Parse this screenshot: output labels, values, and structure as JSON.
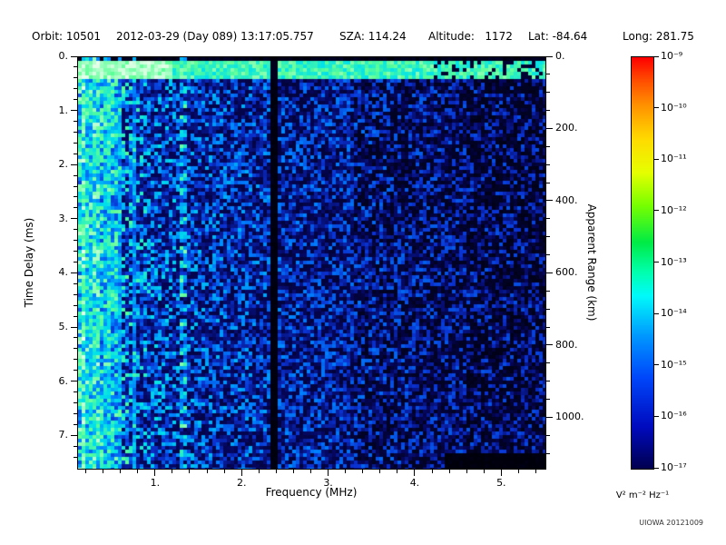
{
  "header": {
    "items": [
      "Orbit: 10501",
      "2012-03-29 (Day 089) 13:17:05.757",
      "SZA: 114.24",
      "Altitude:   1172",
      "Lat: -84.64",
      "Long: 281.75"
    ]
  },
  "chart_data": {
    "type": "heatmap",
    "title": "",
    "xlabel": "Frequency (MHz)",
    "ylabel_left": "Time Delay (ms)",
    "ylabel_right": "Apparent Range (km)",
    "x_range": [
      0.1,
      5.5
    ],
    "y_range": [
      0,
      7.6
    ],
    "range_km_per_ms": 150,
    "x_ticks": [
      1,
      2,
      3,
      4,
      5
    ],
    "x_tick_labels": [
      "1.",
      "2.",
      "3.",
      "4.",
      "5."
    ],
    "y_ticks": [
      0,
      1,
      2,
      3,
      4,
      5,
      6,
      7
    ],
    "y_tick_labels": [
      "0.",
      "1.",
      "2.",
      "3.",
      "4.",
      "5.",
      "6.",
      "7."
    ],
    "y2_ticks": [
      0,
      200,
      400,
      600,
      800,
      1000
    ],
    "y2_tick_labels": [
      "0.",
      "200.",
      "400.",
      "600.",
      "800.",
      "1000."
    ],
    "background_color": "#ffffff",
    "plot_background_color": "#000000",
    "colorbar": {
      "scale": "log",
      "max_label": "10⁻⁹",
      "min_label": "10⁻¹⁷",
      "tick_labels": [
        "10⁻⁹",
        "10⁻¹⁰",
        "10⁻¹¹",
        "10⁻¹²",
        "10⁻¹³",
        "10⁻¹⁴",
        "10⁻¹⁵",
        "10⁻¹⁶",
        "10⁻¹⁷"
      ],
      "units": "V² m⁻² Hz⁻¹",
      "stops": [
        [
          0.0,
          [
            255,
            0,
            0
          ]
        ],
        [
          0.05,
          [
            255,
            70,
            0
          ]
        ],
        [
          0.12,
          [
            255,
            150,
            0
          ]
        ],
        [
          0.2,
          [
            255,
            220,
            0
          ]
        ],
        [
          0.28,
          [
            230,
            255,
            0
          ]
        ],
        [
          0.36,
          [
            120,
            255,
            0
          ]
        ],
        [
          0.45,
          [
            0,
            235,
            70
          ]
        ],
        [
          0.52,
          [
            0,
            255,
            170
          ]
        ],
        [
          0.58,
          [
            0,
            250,
            250
          ]
        ],
        [
          0.68,
          [
            0,
            150,
            255
          ]
        ],
        [
          0.78,
          [
            0,
            70,
            250
          ]
        ],
        [
          0.9,
          [
            0,
            10,
            190
          ]
        ],
        [
          1.0,
          [
            0,
            0,
            80
          ]
        ]
      ]
    },
    "colormap": [
      [
        0.0,
        [
          0,
          0,
          10
        ]
      ],
      [
        0.1,
        [
          5,
          5,
          90
        ]
      ],
      [
        0.3,
        [
          10,
          50,
          210
        ]
      ],
      [
        0.5,
        [
          0,
          130,
          255
        ]
      ],
      [
        0.7,
        [
          0,
          225,
          235
        ]
      ],
      [
        0.85,
        [
          90,
          255,
          150
        ]
      ],
      [
        1.0,
        [
          240,
          255,
          240
        ]
      ]
    ],
    "features": {
      "seed": 20121009,
      "top_black_ms": 0.1,
      "band_ms": [
        0.1,
        0.38
      ],
      "gap": {
        "center_mhz": 2.37,
        "width_mhz": 0.1
      },
      "left_streak_max_mhz": 0.55,
      "bright_streaks_mhz": [
        {
          "f": 0.15,
          "s": 1.0
        },
        {
          "f": 0.22,
          "s": 0.85
        },
        {
          "f": 0.31,
          "s": 0.95
        },
        {
          "f": 0.44,
          "s": 0.8
        },
        {
          "f": 0.58,
          "s": 0.7
        },
        {
          "f": 0.74,
          "s": 0.65
        },
        {
          "f": 1.32,
          "s": 0.9,
          "dashed": true
        }
      ],
      "envelope": [
        [
          0.1,
          0.95
        ],
        [
          0.6,
          0.88
        ],
        [
          1.0,
          0.72
        ],
        [
          1.6,
          0.62
        ],
        [
          2.3,
          0.58
        ],
        [
          2.5,
          0.52
        ],
        [
          3.2,
          0.48
        ],
        [
          4.0,
          0.42
        ],
        [
          5.5,
          0.36
        ]
      ],
      "bottom_right_black": {
        "t_ms": 7.3,
        "f_mhz": 4.35
      }
    }
  },
  "footer": {
    "credit": "UIOWA 20121009"
  }
}
